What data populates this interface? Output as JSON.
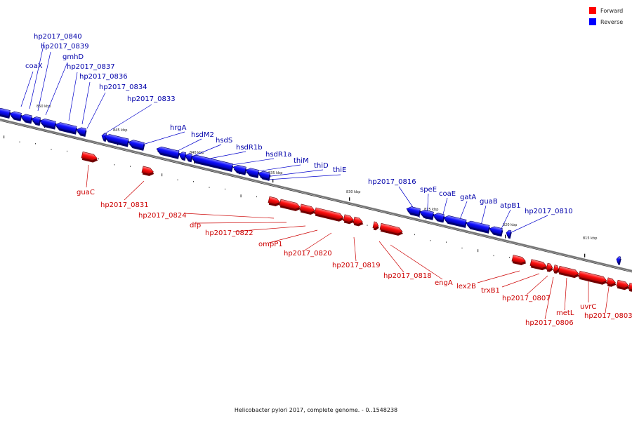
{
  "legend": {
    "forward_label": "Forward",
    "reverse_label": "Reverse",
    "forward_color": "#ff0000",
    "reverse_color": "#0000ff"
  },
  "caption": "Helicobacter pylori 2017, complete genome. - 0..1548238",
  "ticks": [
    "850 kbp",
    "845 kbp",
    "840 kbp",
    "835 kbp",
    "830 kbp",
    "825 kbp",
    "820 kbp",
    "815 kbp"
  ],
  "reverse_genes": [
    "coaX",
    "hp2017_0840",
    "hp2017_0839",
    "gmhD",
    "hp2017_0837",
    "hp2017_0836",
    "hp2017_0834",
    "hp2017_0833",
    "hrgA",
    "hsdM2",
    "hsdS",
    "hsdR1b",
    "hsdR1a",
    "thiM",
    "thiD",
    "thiE",
    "hp2017_0816",
    "speE",
    "coaE",
    "gatA",
    "guaB",
    "atpB1",
    "hp2017_0810"
  ],
  "forward_genes": [
    "guaC",
    "hp2017_0831",
    "hp2017_0824",
    "dfp",
    "hp2017_0822",
    "ompP1",
    "hp2017_0820",
    "hp2017_0819",
    "hp2017_0818",
    "engA",
    "lex2B",
    "trxB1",
    "hp2017_0807",
    "hp2017_0806",
    "metL",
    "uvrC",
    "hp2017_0803"
  ]
}
